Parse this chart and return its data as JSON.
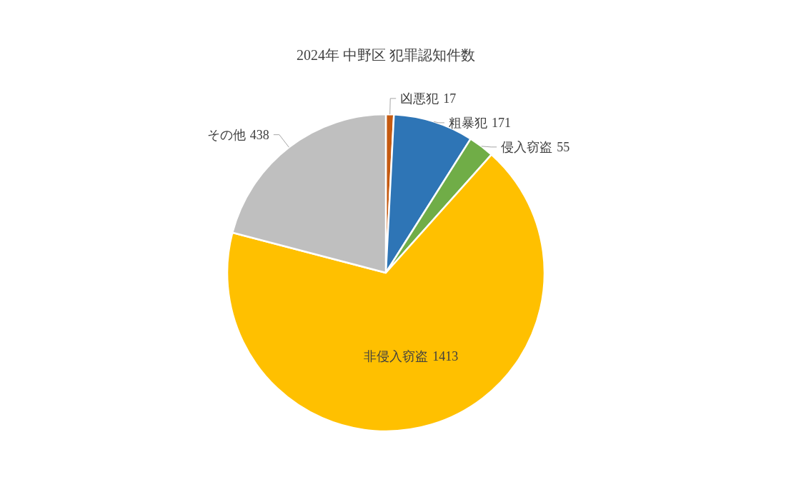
{
  "chart_data": {
    "type": "pie",
    "title": "2024年 中野区 犯罪認知件数",
    "categories": [
      "凶悪犯",
      "粗暴犯",
      "侵入窃盗",
      "非侵入窃盗",
      "その他"
    ],
    "values": [
      17,
      171,
      55,
      1413,
      438
    ],
    "colors": [
      "#c55a11",
      "#2e75b6",
      "#70ad47",
      "#ffc000",
      "#bfbfbf"
    ],
    "data_labels": true
  }
}
